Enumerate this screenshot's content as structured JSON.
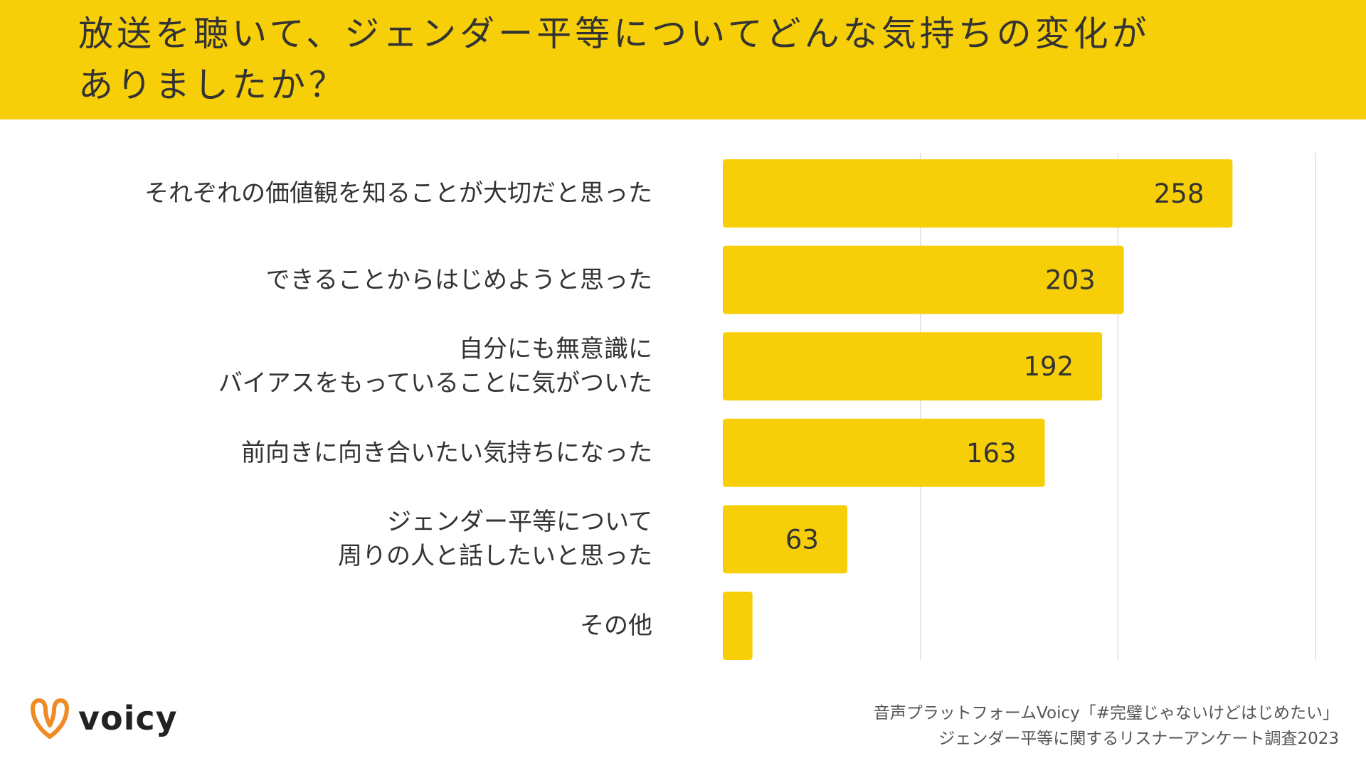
{
  "header": {
    "title_line1": "放送を聴いて、ジェンダー平等についてどんな気持ちの変化が",
    "title_line2": "ありましたか？"
  },
  "chart_data": {
    "type": "bar",
    "orientation": "horizontal",
    "categories": [
      "それぞれの価値観を知ることが大切だと思った",
      "できることからはじめようと思った",
      "自分にも無意識に\nバイアスをもっていることに気がついた",
      "前向きに向き合いたい気持ちになった",
      "ジェンダー平等について\n周りの人と話したいと思った",
      "その他"
    ],
    "values": [
      258,
      203,
      192,
      163,
      63,
      15
    ],
    "value_labels": [
      "258",
      "203",
      "192",
      "163",
      "63",
      ""
    ],
    "xlim": [
      0,
      300
    ],
    "gridlines": [
      100,
      200,
      300
    ],
    "grid": true,
    "bar_color": "#f7cf08"
  },
  "footer": {
    "logo_text": "voicy",
    "source_line1": "音声プラットフォームVoicy「#完璧じゃないけどはじめたい」",
    "source_line2": "ジェンダー平等に関するリスナーアンケート調査2023"
  }
}
